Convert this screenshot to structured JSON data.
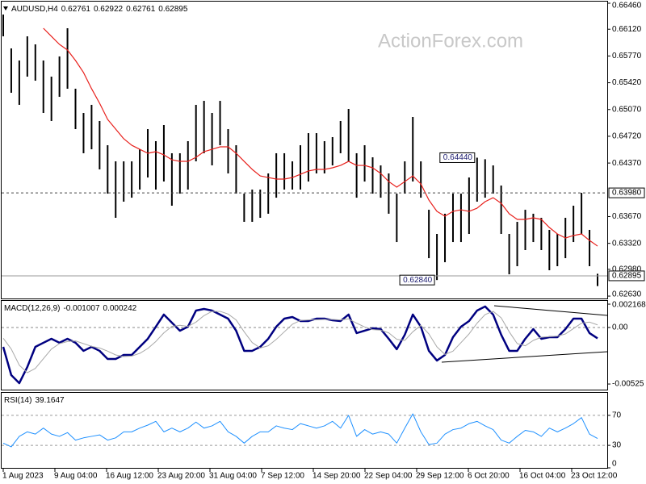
{
  "chart_data": [
    {
      "type": "ohlc",
      "symbol": "AUDUSD,H4",
      "header_values": [
        0.62761,
        0.62922,
        0.62761,
        0.62895
      ],
      "watermark": "ActionForex.com",
      "color": "#000000",
      "high": [
        0.66312,
        0.65869,
        0.65711,
        0.66027,
        0.65922,
        0.65711,
        0.655,
        0.65764,
        0.66133,
        0.65342,
        0.65025,
        0.65131,
        0.6492,
        0.64603,
        0.64392,
        0.64392,
        0.64392,
        0.6455,
        0.64814,
        0.64656,
        0.64867,
        0.64498,
        0.64498,
        0.64656,
        0.65131,
        0.65183,
        0.65025,
        0.65183,
        0.64814,
        0.64603,
        0.6397,
        0.64023,
        0.64023,
        0.64234,
        0.64498,
        0.64498,
        0.64392,
        0.64603,
        0.64761,
        0.64761,
        0.64656,
        0.64709,
        0.6492,
        0.65078,
        0.64498,
        0.64603,
        0.64445,
        0.64339,
        0.64234,
        0.6397,
        0.64392,
        0.64972,
        0.64392,
        0.63759,
        0.63443,
        0.63707,
        0.6397,
        0.6397,
        0.64181,
        0.6444,
        0.6442,
        0.64339,
        0.64076,
        0.63443,
        0.63601,
        0.63759,
        0.63707,
        0.63654,
        0.63496,
        0.63443,
        0.63654,
        0.63812,
        0.6398,
        0.63496,
        0.62922
      ],
      "low": [
        0.66027,
        0.65289,
        0.65131,
        0.655,
        0.65447,
        0.65025,
        0.6492,
        0.65236,
        0.65342,
        0.64814,
        0.64498,
        0.6455,
        0.64287,
        0.6397,
        0.63654,
        0.63865,
        0.63917,
        0.64023,
        0.64181,
        0.64023,
        0.64128,
        0.63812,
        0.6397,
        0.64023,
        0.64392,
        0.64498,
        0.64339,
        0.64603,
        0.64234,
        0.6397,
        0.63601,
        0.63601,
        0.63654,
        0.63707,
        0.63917,
        0.64023,
        0.64023,
        0.64023,
        0.64128,
        0.64234,
        0.64234,
        0.64339,
        0.64498,
        0.64392,
        0.63917,
        0.64128,
        0.6397,
        0.63917,
        0.63707,
        0.63337,
        0.6397,
        0.64128,
        0.63917,
        0.63126,
        0.6284,
        0.63073,
        0.63337,
        0.63337,
        0.63443,
        0.63865,
        0.63917,
        0.6397,
        0.63443,
        0.62915,
        0.63021,
        0.63232,
        0.63337,
        0.63232,
        0.62968,
        0.63021,
        0.63126,
        0.63337,
        0.63443,
        0.63021,
        0.62761
      ],
      "overlay_color": "#e8201c",
      "overlay_values": [
        null,
        null,
        null,
        null,
        null,
        0.66133,
        0.66027,
        0.65922,
        0.65848,
        0.65711,
        0.65553,
        0.65342,
        0.65152,
        0.64941,
        0.64814,
        0.64688,
        0.64603,
        0.6455,
        0.64498,
        0.64519,
        0.64477,
        0.64413,
        0.64392,
        0.64392,
        0.64445,
        0.64519,
        0.6455,
        0.64582,
        0.64582,
        0.64498,
        0.64392,
        0.64287,
        0.64202,
        0.64181,
        0.6416,
        0.6416,
        0.64181,
        0.64223,
        0.64266,
        0.64287,
        0.64287,
        0.64308,
        0.64339,
        0.64392,
        0.64339,
        0.64339,
        0.64308,
        0.64234,
        0.64128,
        0.64055,
        0.64128,
        0.64202,
        0.64097,
        0.63886,
        0.63738,
        0.63675,
        0.63738,
        0.63759,
        0.63738,
        0.6378,
        0.63865,
        0.63917,
        0.63844,
        0.63707,
        0.63633,
        0.63633,
        0.63654,
        0.63633,
        0.63527,
        0.63443,
        0.6339,
        0.63422,
        0.63443,
        0.63358,
        0.63284
      ],
      "ylim": [
        0.62599,
        0.66481
      ],
      "yticks": [
        {
          "value": 0.6646,
          "label": "0.66460"
        },
        {
          "value": 0.6612,
          "label": "0.66120"
        },
        {
          "value": 0.6577,
          "label": "0.65770"
        },
        {
          "value": 0.6542,
          "label": "0.65420"
        },
        {
          "value": 0.6507,
          "label": "0.65070"
        },
        {
          "value": 0.6472,
          "label": "0.64720"
        },
        {
          "value": 0.6437,
          "label": "0.64370"
        },
        {
          "value": 0.6367,
          "label": "0.63670"
        },
        {
          "value": 0.6332,
          "label": "0.63320"
        },
        {
          "value": 0.6298,
          "label": "0.62980"
        },
        {
          "value": 0.6263,
          "label": "0.62630"
        }
      ],
      "price_lines": [
        {
          "value": 0.6398,
          "label": "0.63980",
          "style": "dashed"
        },
        {
          "value": 0.62895,
          "style": "solid"
        }
      ],
      "annotations": [
        {
          "value": 0.6444,
          "label": "0.64440",
          "at": "high"
        },
        {
          "value": 0.6284,
          "label": "0.62840",
          "at": "low"
        }
      ]
    },
    {
      "type": "line",
      "title": "MACD(12,26,9)",
      "header_values": [
        -0.001007,
        0.000242
      ],
      "series": [
        {
          "color": "#000080",
          "width": 2.5,
          "values": [
            -0.0018,
            -0.00442,
            -0.00517,
            -0.00367,
            -0.0018,
            -0.00142,
            -0.00105,
            -0.00142,
            -0.00105,
            -0.00142,
            -0.00217,
            -0.0018,
            -0.00217,
            -0.00292,
            -0.00292,
            -0.00255,
            -0.00255,
            -0.0018,
            -0.00105,
            7e-05,
            0.0012,
            0.00045,
            -0.0003,
            7e-05,
            0.00157,
            0.00172,
            0.00157,
            0.0012,
            0.00082,
            -0.0003,
            -0.00217,
            -0.00217,
            -0.0018,
            -0.00105,
            7e-05,
            0.00082,
            0.00097,
            0.0006,
            0.0006,
            0.00082,
            0.00082,
            0.00067,
            0.0006,
            0.0012,
            -0.00052,
            -0.0003,
            -7e-05,
            -0.00015,
            -0.00105,
            -0.00202,
            -0.00067,
            0.0012,
            7e-05,
            -0.00217,
            -0.00307,
            -0.00255,
            -0.0009,
            7e-05,
            0.0006,
            0.00157,
            0.00195,
            0.0012,
            -0.00067,
            -0.00217,
            -0.00217,
            -0.00105,
            -0.00015,
            -0.00105,
            -0.0009,
            -0.0009,
            -0.00015,
            0.00082,
            0.00082,
            -0.00052,
            -0.001007
          ]
        },
        {
          "color": "#a8a8a8",
          "width": 1,
          "values": [
            -0.001,
            -0.002,
            -0.0035,
            -0.0042,
            -0.0038,
            -0.0029,
            -0.002,
            -0.0015,
            -0.0013,
            -0.00125,
            -0.0015,
            -0.00175,
            -0.0019,
            -0.0022,
            -0.00255,
            -0.0027,
            -0.00265,
            -0.0024,
            -0.00195,
            -0.0013,
            -0.0005,
            0.0001,
            0.0002,
            0.0001,
            0.0005,
            0.0011,
            0.0015,
            0.0015,
            0.00125,
            0.0007,
            -0.0004,
            -0.0014,
            -0.0019,
            -0.0017,
            -0.0011,
            -0.0004,
            0.0003,
            0.00065,
            0.0007,
            0.00072,
            0.00075,
            0.00075,
            0.0007,
            0.0008,
            0.0004,
            5e-05,
            -0.0002,
            -0.00025,
            -0.0005,
            -0.0011,
            -0.0012,
            -0.0004,
            0.0002,
            -0.0006,
            -0.0018,
            -0.0025,
            -0.0022,
            -0.0014,
            -0.0006,
            0.0004,
            0.0012,
            0.0015,
            0.0009,
            -0.0004,
            -0.0015,
            -0.0017,
            -0.0012,
            -0.0009,
            -0.00085,
            -0.0008,
            -0.0006,
            -0.0001,
            0.0004,
            0.0005,
            0.000242
          ]
        }
      ],
      "ylim": [
        -0.00577,
        0.00247
      ],
      "yticks": [
        0.002168,
        {
          "value": 0,
          "label": "0.00"
        },
        -0.00525
      ],
      "zero_line": true
    },
    {
      "type": "line",
      "title": "RSI(14)",
      "header_values": [
        39.1647
      ],
      "series": [
        {
          "color": "#1e90ff",
          "width": 1,
          "values": [
            33,
            28,
            42,
            48,
            45,
            53,
            45,
            42,
            47,
            37,
            40,
            42,
            44,
            37,
            40,
            48,
            48,
            53,
            57,
            62,
            48,
            53,
            48,
            53,
            61,
            53,
            56,
            62,
            48,
            42,
            33,
            42,
            48,
            48,
            56,
            53,
            51,
            59,
            56,
            53,
            56,
            62,
            53,
            70,
            42,
            51,
            45,
            48,
            45,
            33,
            53,
            72,
            48,
            31,
            33,
            45,
            51,
            53,
            59,
            62,
            56,
            51,
            37,
            33,
            42,
            50,
            48,
            42,
            53,
            48,
            53,
            59,
            67,
            45,
            39.1647
          ]
        }
      ],
      "ylim": [
        0,
        100
      ],
      "yticks": [
        70,
        30,
        0
      ],
      "grid": true,
      "x_labels": [
        "1 Aug 2023",
        "9 Aug 04:00",
        "16 Aug 12:00",
        "23 Aug 20:00",
        "31 Aug 04:00",
        "7 Sep 12:00",
        "14 Sep 20:00",
        "22 Sep 04:00",
        "29 Sep 12:00",
        "6 Oct 20:00",
        "16 Oct 04:00",
        "23 Oct 12:00"
      ]
    }
  ]
}
